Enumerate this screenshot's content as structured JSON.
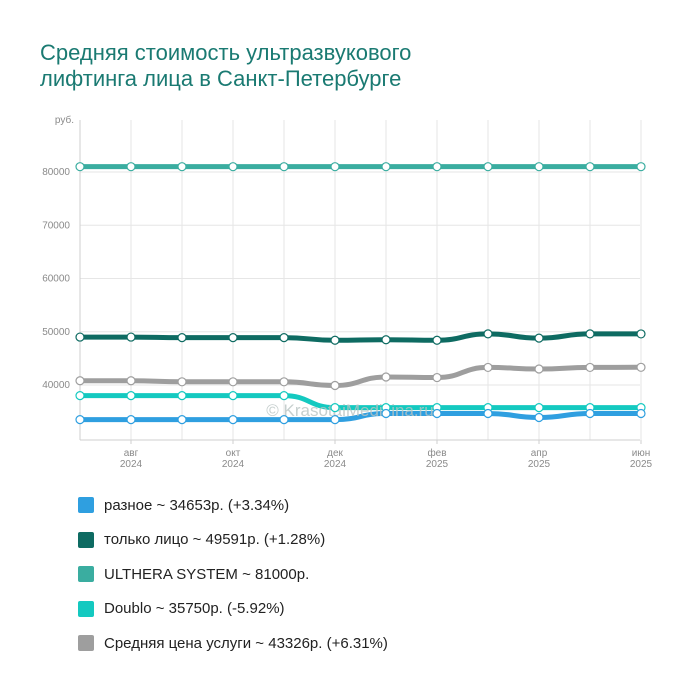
{
  "title_lines": [
    "Средняя стоимость ультразвукового",
    "лифтинга лица в Санкт-Петербурге"
  ],
  "watermark": "© KrasotaiMedicina.ru",
  "chart_data": {
    "type": "line",
    "y_unit_label": "руб.",
    "y_ticks": [
      40000,
      50000,
      60000,
      70000,
      80000
    ],
    "ylim": [
      32000,
      90000
    ],
    "x_tick_labels": [
      [
        "авг",
        "2024"
      ],
      [
        "окт",
        "2024"
      ],
      [
        "дек",
        "2024"
      ],
      [
        "фев",
        "2025"
      ],
      [
        "апр",
        "2025"
      ],
      [
        "июн",
        "2025"
      ]
    ],
    "x_tick_index": [
      1,
      3,
      5,
      7,
      9,
      11
    ],
    "points_count": 12,
    "grid": true,
    "legend_position": "bottom",
    "series": [
      {
        "name": "ULTHERA SYSTEM",
        "legend": "ULTHERA SYSTEM ~ 81000р.",
        "color": "#3aada0",
        "values": [
          81000,
          81000,
          81000,
          81000,
          81000,
          81000,
          81000,
          81000,
          81000,
          81000,
          81000,
          81000
        ]
      },
      {
        "name": "только лицо",
        "legend": "только лицо ~ 49591р. (+1.28%)",
        "color": "#0e6b62",
        "values": [
          49000,
          49000,
          48900,
          48900,
          48900,
          48400,
          48500,
          48400,
          49600,
          48800,
          49600,
          49591
        ]
      },
      {
        "name": "Средняя цена услуги",
        "legend": "Средняя цена услуги ~ 43326р. (+6.31%)",
        "color": "#9e9e9e",
        "values": [
          40800,
          40800,
          40600,
          40600,
          40600,
          39900,
          41500,
          41400,
          43300,
          43000,
          43300,
          43326
        ]
      },
      {
        "name": "Doublo",
        "legend": "Doublo ~ 35750р. (-5.92%)",
        "color": "#14c9c0",
        "values": [
          38000,
          38000,
          38000,
          38000,
          38000,
          35750,
          35750,
          35750,
          35750,
          35750,
          35750,
          35750
        ]
      },
      {
        "name": "разное",
        "legend": "разное ~ 34653р. (+3.34%)",
        "color": "#2f9fe0",
        "values": [
          33500,
          33500,
          33500,
          33500,
          33500,
          33500,
          34653,
          34653,
          34653,
          33900,
          34653,
          34653
        ]
      }
    ],
    "legend_order": [
      "разное",
      "только лицо",
      "ULTHERA SYSTEM",
      "Doublo",
      "Средняя цена услуги"
    ]
  }
}
